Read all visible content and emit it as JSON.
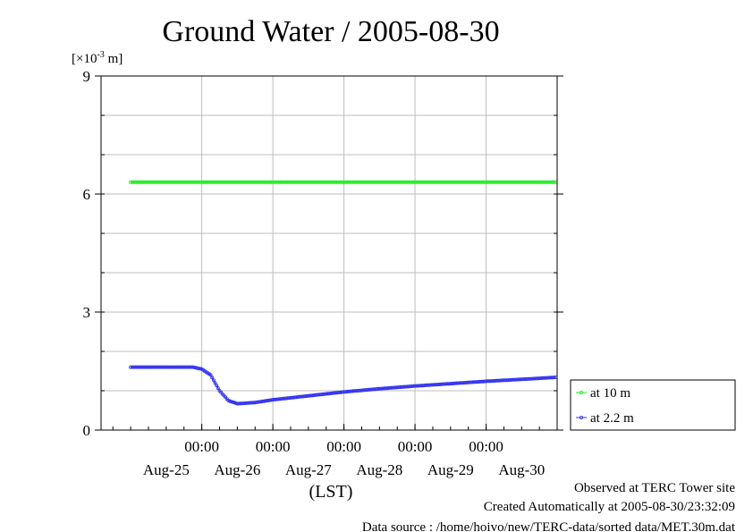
{
  "chart_data": {
    "type": "line",
    "title": "Ground Water / 2005-08-30",
    "ylabel_prefix": "[×10",
    "ylabel_exp": "-3",
    "ylabel_suffix": " m]",
    "xlabel": "(LST)",
    "ylim": [
      0,
      9
    ],
    "yticks": [
      0,
      3,
      6,
      9
    ],
    "xlim_days": [
      0,
      6
    ],
    "time_labels": [
      "00:00",
      "00:00",
      "00:00",
      "00:00",
      "00:00"
    ],
    "date_labels": [
      "Aug-25",
      "Aug-26",
      "Aug-27",
      "Aug-28",
      "Aug-29",
      "Aug-30"
    ],
    "grid": true,
    "legend_position": "right",
    "series": [
      {
        "name": "at 10 m",
        "color": "#22ee22",
        "x": [
          "2005-08-25T00:00",
          "2005-08-26T00:00",
          "2005-08-27T00:00",
          "2005-08-28T00:00",
          "2005-08-29T00:00",
          "2005-08-30T00:00",
          "2005-08-30T23:30"
        ],
        "values": [
          6.3,
          6.3,
          6.3,
          6.3,
          6.3,
          6.3,
          6.3
        ]
      },
      {
        "name": "at 2.2 m",
        "color": "#3333ee",
        "x": [
          "2005-08-25T00:00",
          "2005-08-25T12:00",
          "2005-08-25T21:00",
          "2005-08-26T00:00",
          "2005-08-26T03:00",
          "2005-08-26T06:00",
          "2005-08-26T09:00",
          "2005-08-26T12:00",
          "2005-08-26T18:00",
          "2005-08-27T00:00",
          "2005-08-27T12:00",
          "2005-08-28T00:00",
          "2005-08-28T12:00",
          "2005-08-29T00:00",
          "2005-08-29T12:00",
          "2005-08-30T00:00",
          "2005-08-30T12:00",
          "2005-08-30T23:30"
        ],
        "values": [
          1.6,
          1.6,
          1.6,
          1.55,
          1.4,
          1.0,
          0.75,
          0.67,
          0.7,
          0.77,
          0.87,
          0.97,
          1.05,
          1.12,
          1.18,
          1.24,
          1.29,
          1.34
        ]
      }
    ]
  },
  "footer": {
    "line1": "Observed at TERC Tower site",
    "line2": "Created Automatically at 2005-08-30/23:32:09",
    "line3": "Data source : /home/hoivo/new/TERC-data/sorted  data/MET.30m.dat"
  }
}
